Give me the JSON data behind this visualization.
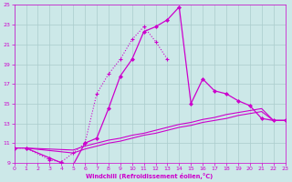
{
  "xlabel": "Windchill (Refroidissement éolien,°C)",
  "xlim": [
    0,
    23
  ],
  "ylim": [
    9,
    25
  ],
  "xticks": [
    0,
    1,
    2,
    3,
    4,
    5,
    6,
    7,
    8,
    9,
    10,
    11,
    12,
    13,
    14,
    15,
    16,
    17,
    18,
    19,
    20,
    21,
    22,
    23
  ],
  "yticks": [
    9,
    11,
    13,
    15,
    17,
    19,
    21,
    23,
    25
  ],
  "bg_color": "#cce8e8",
  "grid_color": "#aacccc",
  "line_color": "#cc00cc",
  "main_x": [
    0,
    1,
    3,
    4,
    5,
    6,
    7,
    8,
    9,
    10,
    11,
    12,
    13,
    14,
    15,
    16,
    17,
    18,
    19,
    20,
    21,
    22,
    23
  ],
  "main_y": [
    10.5,
    10.5,
    9.5,
    9.0,
    8.8,
    11.0,
    11.5,
    14.5,
    17.8,
    19.5,
    22.3,
    22.8,
    23.5,
    24.8,
    15.0,
    17.5,
    16.3,
    16.0,
    15.3,
    14.8,
    13.5,
    13.3,
    13.3
  ],
  "dot_x": [
    0,
    1,
    3,
    4,
    5,
    6,
    7,
    8,
    9,
    10,
    11,
    12,
    13
  ],
  "dot_y": [
    10.5,
    10.5,
    9.3,
    9.1,
    10.0,
    11.0,
    16.0,
    18.0,
    19.5,
    21.5,
    22.8,
    21.3,
    19.5
  ],
  "flat1_x": [
    1,
    5,
    6,
    7,
    8,
    9,
    10,
    11,
    12,
    13,
    14,
    15,
    16,
    17,
    18,
    19,
    20,
    21,
    22,
    23
  ],
  "flat1_y": [
    10.5,
    10.3,
    10.7,
    11.0,
    11.3,
    11.5,
    11.8,
    12.0,
    12.3,
    12.6,
    12.9,
    13.1,
    13.4,
    13.6,
    13.9,
    14.1,
    14.3,
    14.5,
    13.3,
    13.3
  ],
  "flat2_x": [
    1,
    5,
    6,
    7,
    8,
    9,
    10,
    11,
    12,
    13,
    14,
    15,
    16,
    17,
    18,
    19,
    20,
    21,
    22,
    23
  ],
  "flat2_y": [
    10.5,
    10.0,
    10.4,
    10.7,
    11.0,
    11.2,
    11.5,
    11.8,
    12.0,
    12.3,
    12.6,
    12.8,
    13.1,
    13.3,
    13.5,
    13.8,
    14.0,
    14.2,
    13.3,
    13.3
  ]
}
